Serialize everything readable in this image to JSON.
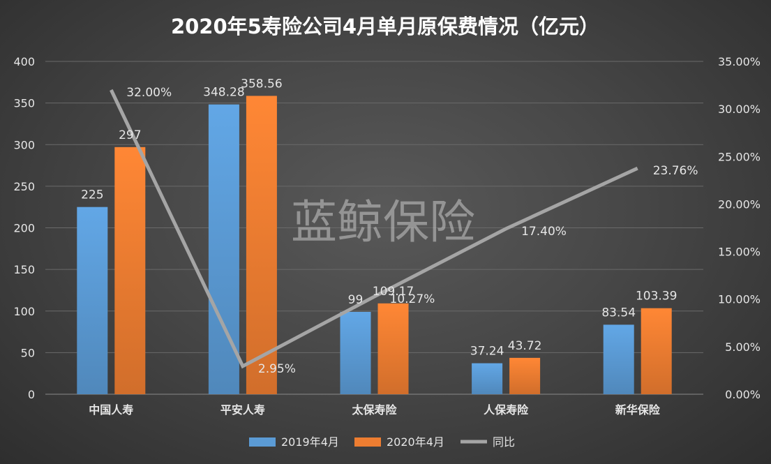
{
  "chart_data": {
    "type": "bar",
    "title": "2020年5寿险公司4月单月原保费情况（亿元）",
    "categories": [
      "中国人寿",
      "平安人寿",
      "太保寿险",
      "人保寿险",
      "新华保险"
    ],
    "series": [
      {
        "name": "2019年4月",
        "type": "bar",
        "axis": "left",
        "color": "#5b9bd5",
        "values": [
          225,
          348.28,
          99,
          37.24,
          83.54
        ],
        "labels": [
          "225",
          "348.28",
          "99",
          "37.24",
          "83.54"
        ]
      },
      {
        "name": "2020年4月",
        "type": "bar",
        "axis": "left",
        "color": "#ed7d31",
        "values": [
          297,
          358.56,
          109.17,
          43.72,
          103.39
        ],
        "labels": [
          "297",
          "358.56",
          "109.17",
          "43.72",
          "103.39"
        ]
      },
      {
        "name": "同比",
        "type": "line",
        "axis": "right",
        "color": "#a5a5a5",
        "values": [
          0.32,
          0.0295,
          0.1027,
          0.174,
          0.2376
        ],
        "labels": [
          "32.00%",
          "2.95%",
          "10.27%",
          "17.40%",
          "23.76%"
        ]
      }
    ],
    "ylim": [
      0,
      400
    ],
    "y_ticks": [
      "0",
      "50",
      "100",
      "150",
      "200",
      "250",
      "300",
      "350",
      "400"
    ],
    "y2lim": [
      0,
      0.35
    ],
    "y2_ticks": [
      "0.00%",
      "5.00%",
      "10.00%",
      "15.00%",
      "20.00%",
      "25.00%",
      "30.00%",
      "35.00%"
    ],
    "grid": true,
    "legend_position": "bottom"
  },
  "watermark": "蓝鲸保险",
  "background_color": "#474747"
}
